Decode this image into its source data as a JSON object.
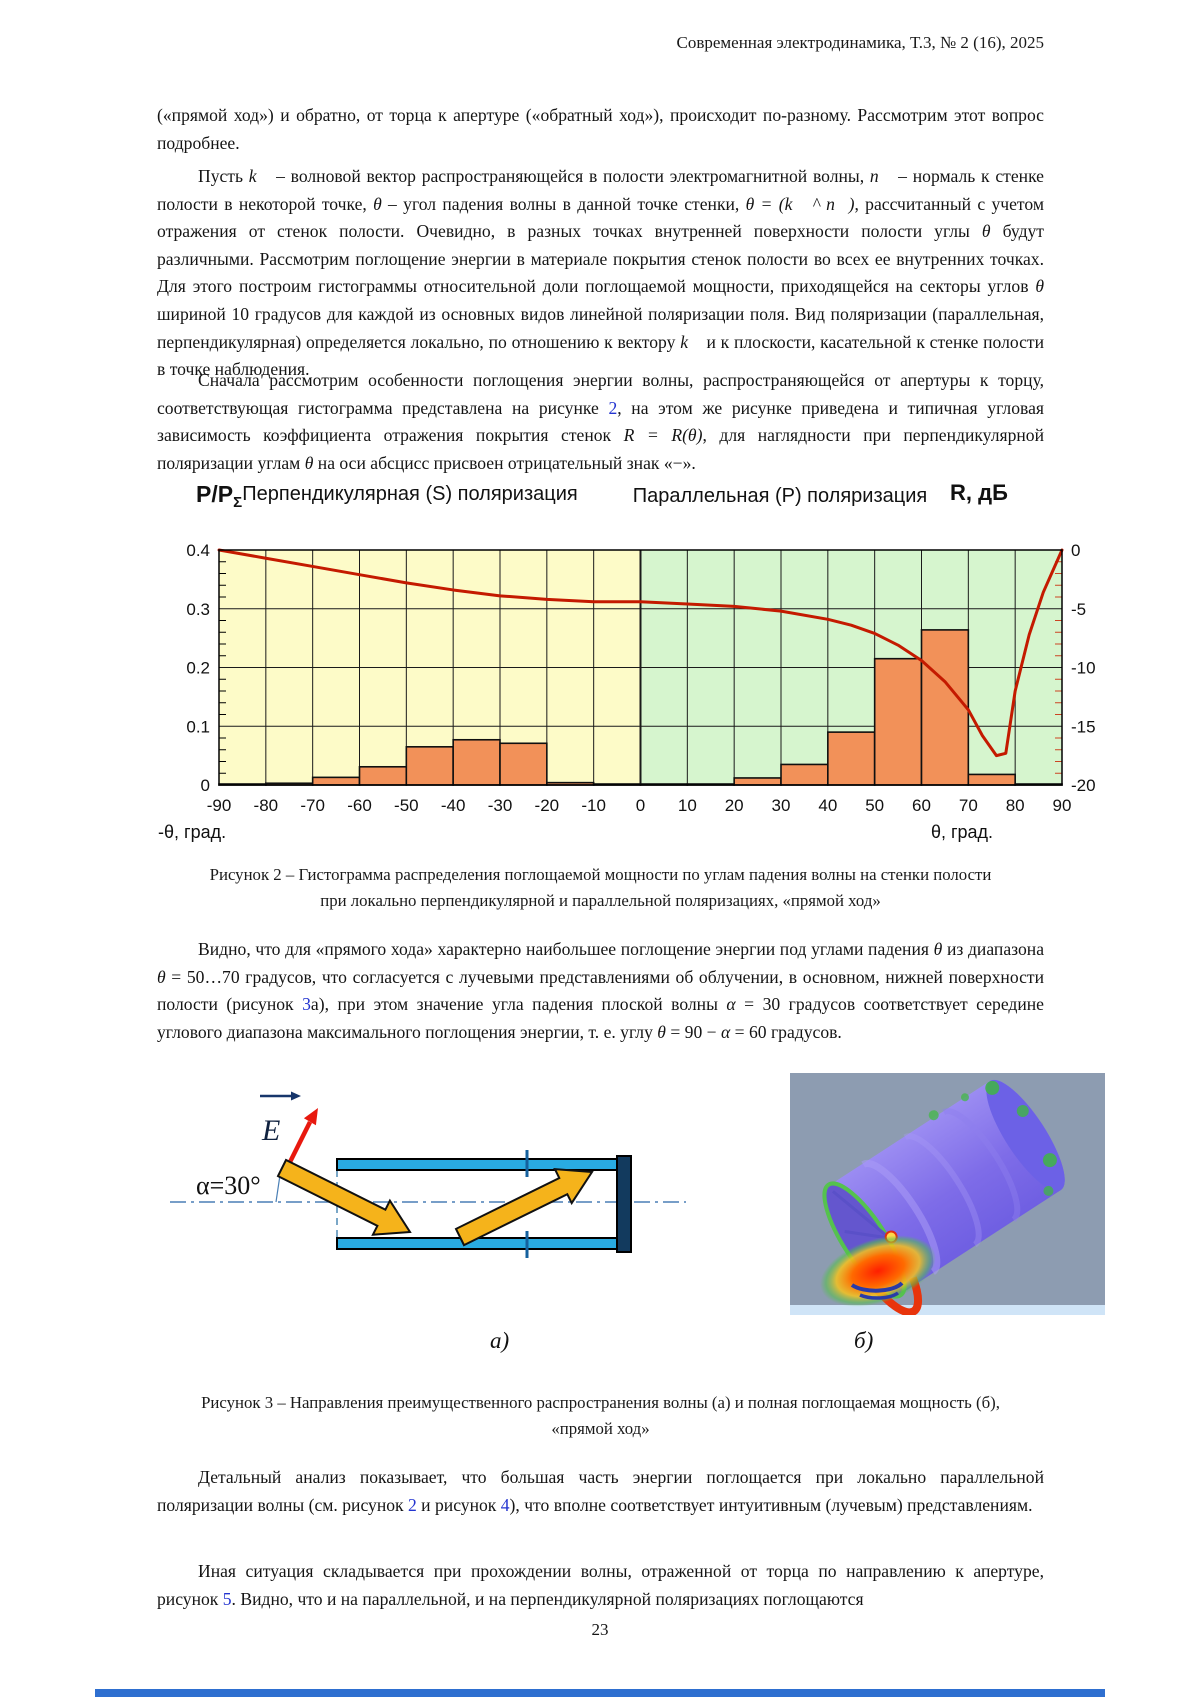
{
  "header": {
    "journal_line": "Современная электродинамика, Т.3, № 2 (16), 2025"
  },
  "paragraphs": {
    "p1": [
      {
        "t": "(«прямой ход») и обратно, от торца к апертуре («обратный ход»), происходит по-разному. Рассмотрим этот вопрос подробнее."
      }
    ],
    "p2": [
      {
        "t": "Пусть "
      },
      {
        "t": "k⃗",
        "s": "i"
      },
      {
        "t": " – волновой вектор распространяющейся в полости электромагнитной волны, "
      },
      {
        "t": "n⃗",
        "s": "i"
      },
      {
        "t": " – нормаль к стенке полости в некоторой точке, "
      },
      {
        "t": "θ",
        "s": "i"
      },
      {
        "t": " – угол падения волны в данной точке стенки, "
      },
      {
        "t": "θ = (k⃗ ^ n⃗)",
        "s": "i"
      },
      {
        "t": ", рассчитанный с учетом отражения от стенок полости. Очевидно, в разных точках внутренней поверхности полости углы "
      },
      {
        "t": "θ",
        "s": "i"
      },
      {
        "t": " будут различными. Рассмотрим поглощение энергии в материале покрытия стенок полости во всех ее внутренних точках. Для этого построим гистограммы относительной доли поглощаемой мощности, приходящейся на секторы углов "
      },
      {
        "t": "θ",
        "s": "i"
      },
      {
        "t": " шириной 10 градусов для каждой из основных видов линейной поляризации поля. Вид поляризации (параллельная, перпендикулярная) определяется локально, по отношению к вектору "
      },
      {
        "t": "k⃗",
        "s": "i"
      },
      {
        "t": " и к плоскости, касательной к стенке полости в точке наблюдения."
      }
    ],
    "p3": [
      {
        "t": "Сначала рассмотрим особенности поглощения энергии волны, распространяющейся от апертуры к торцу, соответствующая гистограмма представлена на рисунке "
      },
      {
        "t": "2",
        "s": "link"
      },
      {
        "t": ", на этом же рисунке приведена и типичная угловая зависимость коэффициента отражения покрытия стенок "
      },
      {
        "t": "R = R(θ)",
        "s": "i"
      },
      {
        "t": ", для наглядности при перпендикулярной поляризации углам "
      },
      {
        "t": "θ",
        "s": "i"
      },
      {
        "t": " на оси абсцисс присвоен отрицательный знак «−»."
      }
    ],
    "p4": [
      {
        "t": "Видно, что для «прямого хода» характерно наибольшее поглощение энергии под углами падения "
      },
      {
        "t": "θ",
        "s": "i"
      },
      {
        "t": " из диапазона "
      },
      {
        "t": "θ",
        "s": "i"
      },
      {
        "t": " = 50…70 градусов, что согласуется с лучевыми представлениями об облучении, в основном, нижней поверхности полости (рисунок "
      },
      {
        "t": "3",
        "s": "link"
      },
      {
        "t": "а), при этом значение угла падения плоской волны "
      },
      {
        "t": "α",
        "s": "i"
      },
      {
        "t": " = 30 градусов соответствует середине углового диапазона максимального поглощения энергии, т. е. углу "
      },
      {
        "t": "θ",
        "s": "i"
      },
      {
        "t": " = 90 − "
      },
      {
        "t": "α",
        "s": "i"
      },
      {
        "t": " = 60 градусов."
      }
    ],
    "p5": [
      {
        "t": "Детальный анализ показывает, что большая часть энергии поглощается при локально параллельной поляризации волны (см. рисунок "
      },
      {
        "t": "2",
        "s": "link"
      },
      {
        "t": " и рисунок "
      },
      {
        "t": "4",
        "s": "link"
      },
      {
        "t": "), что вполне соответствует интуитивным (лучевым) представлениям."
      }
    ],
    "p6": [
      {
        "t": "Иная ситуация складывается при прохождении волны, отраженной от торца по направлению к апертуре, рисунок "
      },
      {
        "t": "5",
        "s": "link"
      },
      {
        "t": ". Видно, что и на параллельной, и на перпендикулярной поляризациях поглощаются"
      }
    ]
  },
  "figure2": {
    "caption_line1": "Рисунок 2 – Гистограмма распределения поглощаемой мощности по углам падения волны на стенки полости",
    "caption_line2": "при локально перпендикулярной и параллельной поляризациях, «прямой ход»"
  },
  "chart_data": {
    "type": "bar+line",
    "title_s": "Перпендикулярная (S) поляризация",
    "title_p": "Параллельная (P) поляризация",
    "ylabel_left": "P/P",
    "ylabel_left_sub": "Σ",
    "ylabel_right": "R, дБ",
    "xlabel_left": "-θ, град.",
    "xlabel_right": "θ, град.",
    "x_ticks": [
      -90,
      -80,
      -70,
      -60,
      -50,
      -40,
      -30,
      -20,
      -10,
      0,
      10,
      20,
      30,
      40,
      50,
      60,
      70,
      80,
      90
    ],
    "yticks_left": [
      0,
      0.1,
      0.2,
      0.3,
      0.4
    ],
    "yticks_right": [
      0,
      -5,
      -10,
      -15,
      -20
    ],
    "ylim_left": [
      0,
      0.4
    ],
    "ylim_right": [
      -20,
      0
    ],
    "bars": {
      "bin_start": -90,
      "bin_width": 10,
      "values": [
        0.001,
        0.003,
        0.013,
        0.031,
        0.065,
        0.077,
        0.071,
        0.004,
        0.001,
        0.001,
        0.001,
        0.012,
        0.035,
        0.09,
        0.215,
        0.264,
        0.018,
        0.0
      ]
    },
    "reflection_line_dB": {
      "x": [
        -90,
        -80,
        -70,
        -60,
        -50,
        -40,
        -30,
        -20,
        -10,
        0,
        10,
        20,
        30,
        40,
        45,
        50,
        55,
        60,
        65,
        70,
        73,
        76,
        78,
        80,
        83,
        86,
        88,
        90
      ],
      "y": [
        0,
        -0.7,
        -1.4,
        -2.1,
        -2.8,
        -3.4,
        -3.9,
        -4.2,
        -4.4,
        -4.4,
        -4.6,
        -4.8,
        -5.2,
        -5.9,
        -6.4,
        -7.1,
        -8.1,
        -9.4,
        -11.2,
        -13.6,
        -15.8,
        -17.5,
        -17.3,
        -12.0,
        -7.2,
        -3.6,
        -1.8,
        0
      ]
    },
    "colors": {
      "bg_s": "#FDFBC8",
      "bg_p": "#D6F5CE",
      "bar": "#F29159",
      "line": "#C41A00",
      "grid": "#1a1a1a"
    }
  },
  "figure3": {
    "label_a": "а)",
    "label_b": "б)",
    "caption_line1": "Рисунок 3 – Направления преимущественного распространения волны (а) и полная поглощаемая мощность (б),",
    "caption_line2": "«прямой ход»",
    "diagram": {
      "e_label": "E",
      "alpha_label": "α=30°"
    }
  },
  "footer": {
    "page_number": "23"
  }
}
